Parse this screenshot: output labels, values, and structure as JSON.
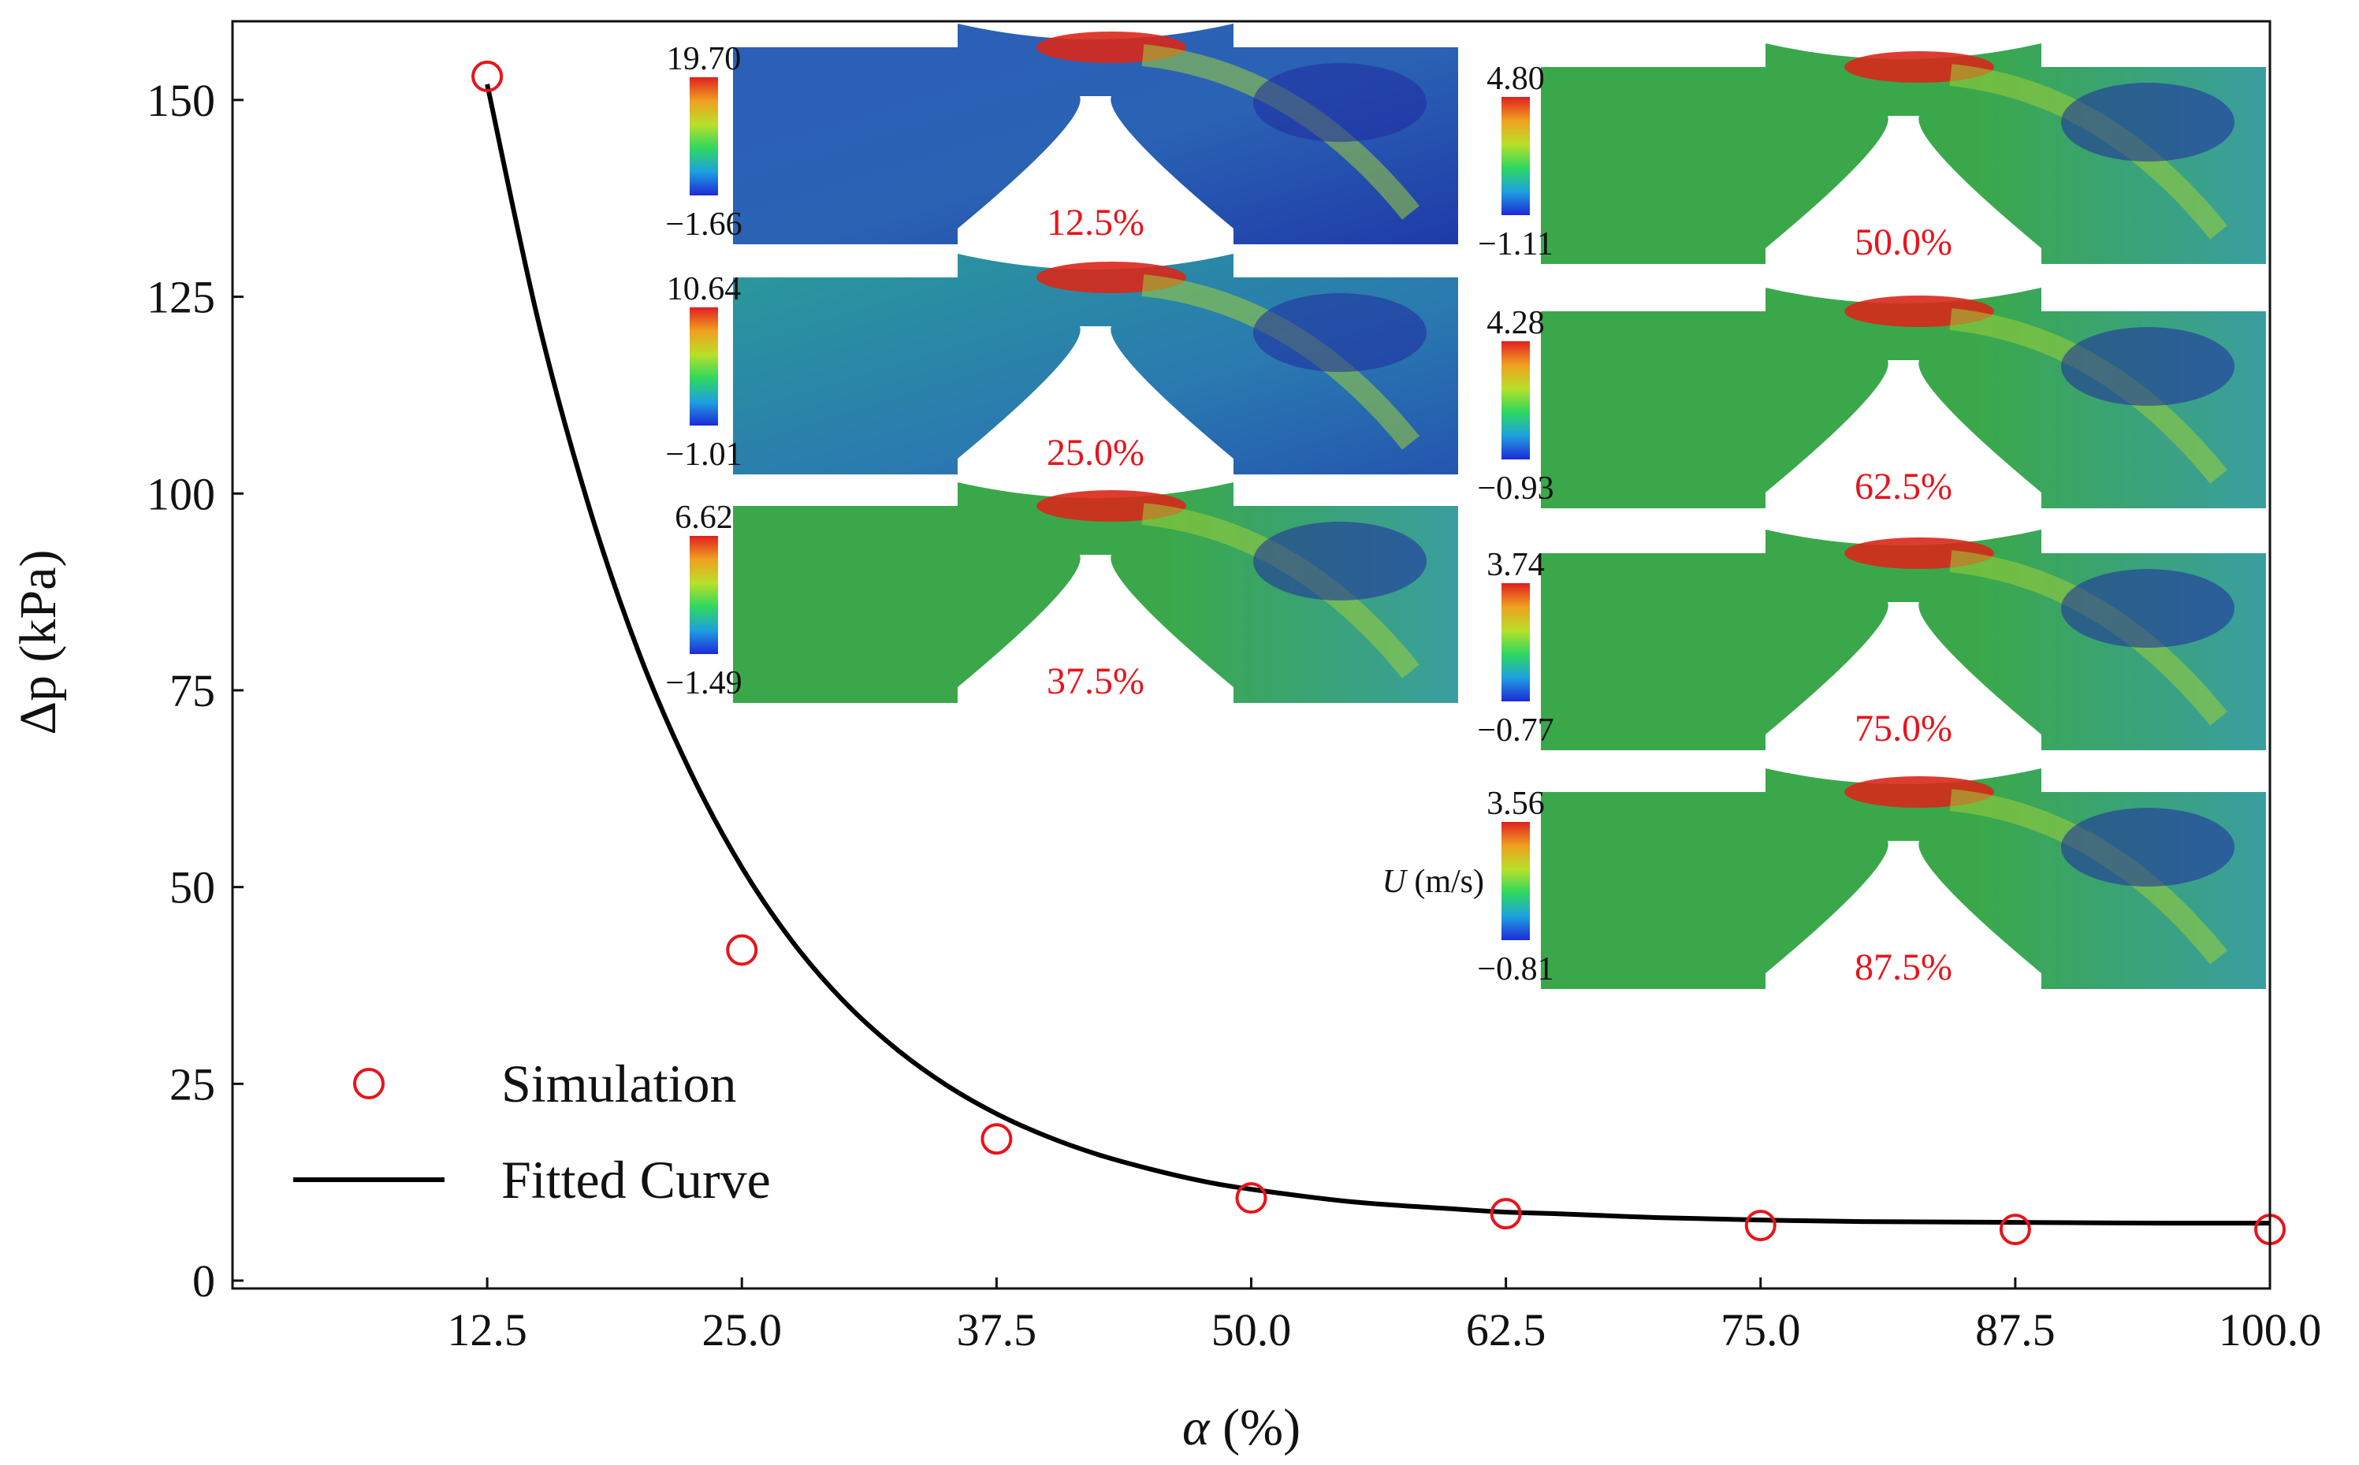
{
  "chart_data": {
    "type": "scatter",
    "xlabel_symbol": "α",
    "xlabel_unit": "(%)",
    "ylabel_symbol": "Δp",
    "ylabel_unit": "(kPa)",
    "xlim": [
      0,
      100
    ],
    "ylim": [
      -1,
      160
    ],
    "x_ticks": [
      12.5,
      25.0,
      37.5,
      50.0,
      62.5,
      75.0,
      87.5,
      100.0
    ],
    "x_tick_labels": [
      "12.5",
      "25.0",
      "37.5",
      "50.0",
      "62.5",
      "75.0",
      "87.5",
      "100.0"
    ],
    "y_ticks": [
      0,
      25,
      50,
      75,
      100,
      125,
      150
    ],
    "y_tick_labels": [
      "0",
      "25",
      "50",
      "75",
      "100",
      "125",
      "150"
    ],
    "legend_position": "bottom-left",
    "series": [
      {
        "name": "Simulation",
        "kind": "markers",
        "color": "#e8141b",
        "x": [
          12.5,
          25.0,
          37.5,
          50.0,
          62.5,
          75.0,
          87.5,
          100.0
        ],
        "y": [
          153,
          42,
          18,
          10.5,
          8.5,
          7,
          6.5,
          6.5
        ]
      },
      {
        "name": "Fitted Curve",
        "kind": "line",
        "color": "#000000",
        "x": [
          12.5,
          15,
          17.5,
          20,
          22.5,
          25,
          27.5,
          30,
          32.5,
          35,
          37.5,
          40,
          42.5,
          45,
          47.5,
          50,
          55,
          60,
          62.5,
          65,
          70,
          75,
          80,
          87.5,
          95,
          100
        ],
        "y": [
          152,
          122,
          98.3,
          79.4,
          64.5,
          52.5,
          43,
          35.5,
          29.6,
          24.9,
          21.2,
          18.3,
          16,
          14.2,
          12.7,
          11.6,
          10,
          9.1,
          8.7,
          8.5,
          8,
          7.7,
          7.5,
          7.4,
          7.3,
          7.3
        ]
      }
    ],
    "colorbar_unit_symbol": "U",
    "colorbar_unit": "(m/s)",
    "insets": [
      {
        "label": "12.5%",
        "max": "19.70",
        "min": "−1.66"
      },
      {
        "label": "25.0%",
        "max": "10.64",
        "min": "−1.01"
      },
      {
        "label": "37.5%",
        "max": "6.62",
        "min": "−1.49"
      },
      {
        "label": "50.0%",
        "max": "4.80",
        "min": "−1.11"
      },
      {
        "label": "62.5%",
        "max": "4.28",
        "min": "−0.93"
      },
      {
        "label": "75.0%",
        "max": "3.74",
        "min": "−0.77"
      },
      {
        "label": "87.5%",
        "max": "3.56",
        "min": "−0.81"
      }
    ]
  },
  "colors": {
    "marker": "#e8141b",
    "line": "#000000",
    "inset_label": "#e8141b",
    "field_low": "#2a4fb8",
    "field_mid": "#3fae4a",
    "field_high": "#c8201a"
  }
}
